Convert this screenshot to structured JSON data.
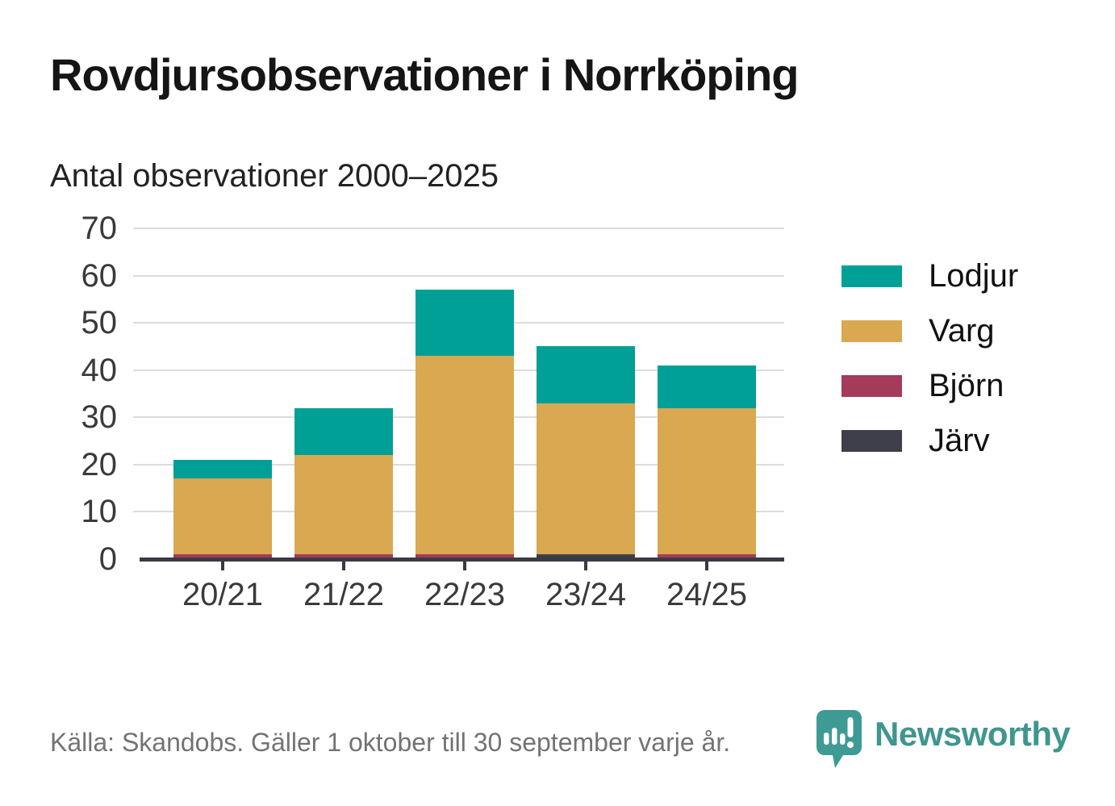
{
  "title": "Rovdjursobservationer i Norrköping",
  "subtitle": "Antal observationer 2000–2025",
  "footer": {
    "source": "Källa: Skandobs. Gäller 1 oktober till 30 september varje år.",
    "brand": "Newsworthy"
  },
  "colors": {
    "background": "#ffffff",
    "grid": "#dcdcdc",
    "axis": "#3a3a44",
    "tick_text": "#3a3a3a",
    "title_text": "#151515",
    "subtitle_text": "#222222",
    "source_text": "#737373",
    "brand_teal": "#3e968f"
  },
  "chart_data": {
    "type": "bar",
    "stacked": true,
    "title": "Rovdjursobservationer i Norrköping",
    "subtitle": "Antal observationer 2000–2025",
    "categories": [
      "20/21",
      "21/22",
      "22/23",
      "23/24",
      "24/25"
    ],
    "series": [
      {
        "name": "Lodjur",
        "color": "#00a096",
        "values": [
          4,
          10,
          14,
          12,
          9
        ]
      },
      {
        "name": "Varg",
        "color": "#d9a850",
        "values": [
          16,
          21,
          42,
          32,
          31
        ]
      },
      {
        "name": "Björn",
        "color": "#a43b58",
        "values": [
          1,
          1,
          1,
          0,
          1
        ]
      },
      {
        "name": "Järv",
        "color": "#3f3e4b",
        "values": [
          0,
          0,
          0,
          1,
          0
        ]
      }
    ],
    "totals": [
      21,
      32,
      57,
      45,
      41
    ],
    "xlabel": "",
    "ylabel": "",
    "yticks": [
      0,
      10,
      20,
      30,
      40,
      50,
      60,
      70
    ],
    "ylim": [
      0,
      70
    ],
    "grid": true,
    "legend_position": "right",
    "stack_order_bottom_to_top": [
      "Järv",
      "Björn",
      "Varg",
      "Lodjur"
    ]
  }
}
